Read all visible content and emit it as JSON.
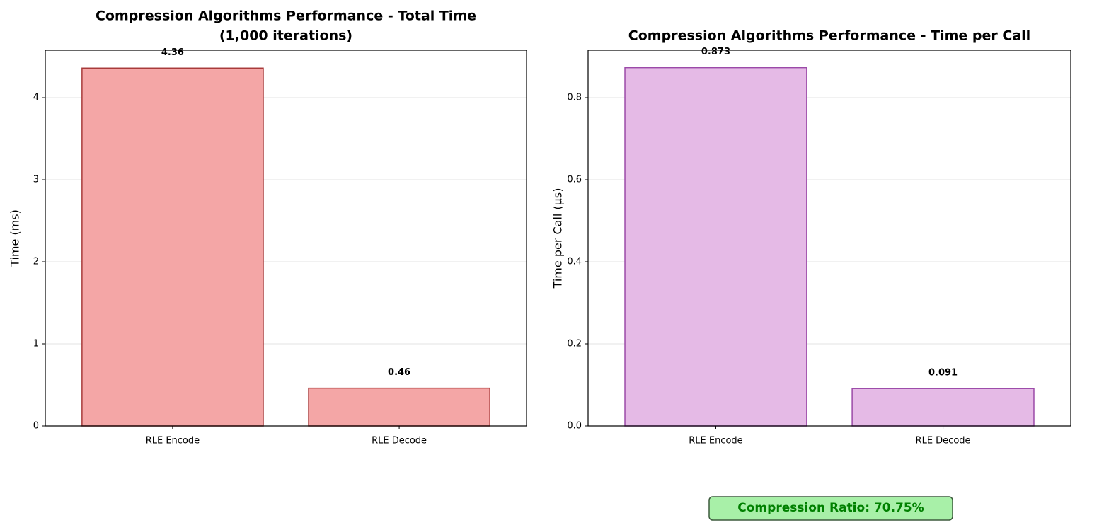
{
  "chart_data": [
    {
      "type": "bar",
      "title": [
        "Compression Algorithms Performance - Total Time",
        "(1,000 iterations)"
      ],
      "ylabel": "Time (ms)",
      "categories": [
        "RLE Encode",
        "RLE Decode"
      ],
      "values": [
        4.36,
        0.46
      ],
      "color": "#f4a6a6",
      "edgecolor": "#a83a3a",
      "ylim": [
        0,
        4.578
      ],
      "yticks": [
        0,
        1,
        2,
        3,
        4
      ],
      "grid": true
    },
    {
      "type": "bar",
      "title": [
        "Compression Algorithms Performance - Time per Call"
      ],
      "ylabel": "Time per Call (μs)",
      "categories": [
        "RLE Encode",
        "RLE Decode"
      ],
      "values": [
        0.873,
        0.091
      ],
      "color": "#e5bae6",
      "edgecolor": "#9b4aa8",
      "ylim": [
        0,
        0.9155
      ],
      "yticks": [
        {
          "value": 0,
          "label": "0.0"
        },
        0.2,
        0.4,
        0.6,
        0.8
      ],
      "grid": true
    }
  ],
  "annotation": "Compression Ratio: 70.75%"
}
